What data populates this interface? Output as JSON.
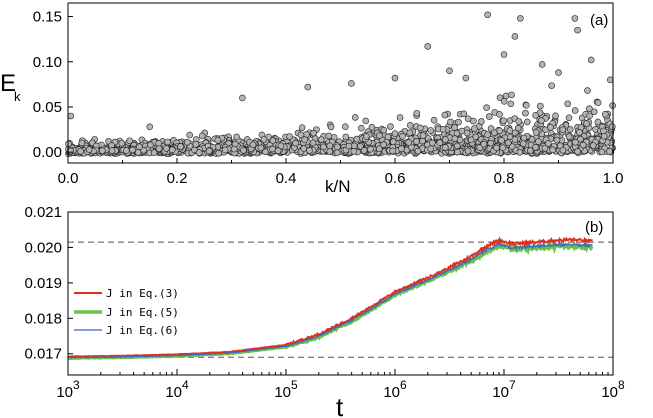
{
  "chart_data": [
    {
      "type": "scatter",
      "panel_label": "(a)",
      "xlabel": "k/N",
      "ylabel_main": "E",
      "ylabel_sub": "k",
      "xlim": [
        0.0,
        1.0
      ],
      "ylim": [
        -0.012,
        0.165
      ],
      "xticks": [
        "0.0",
        "0.2",
        "0.4",
        "0.6",
        "0.8",
        "1.0"
      ],
      "xtick_values": [
        0.0,
        0.2,
        0.4,
        0.6,
        0.8,
        1.0
      ],
      "yticks": [
        "0.00",
        "0.05",
        "0.10",
        "0.15"
      ],
      "ytick_values": [
        0.0,
        0.05,
        0.1,
        0.15
      ],
      "marker_color": "#b4b4b4",
      "marker_edge": "#222222",
      "num_points": 1900,
      "notable_points": [
        {
          "x": 0.005,
          "y": 0.04
        },
        {
          "x": 0.15,
          "y": 0.028
        },
        {
          "x": 0.32,
          "y": 0.06
        },
        {
          "x": 0.44,
          "y": 0.072
        },
        {
          "x": 0.52,
          "y": 0.076
        },
        {
          "x": 0.6,
          "y": 0.082
        },
        {
          "x": 0.66,
          "y": 0.117
        },
        {
          "x": 0.7,
          "y": 0.09
        },
        {
          "x": 0.73,
          "y": 0.082
        },
        {
          "x": 0.77,
          "y": 0.152
        },
        {
          "x": 0.8,
          "y": 0.108
        },
        {
          "x": 0.82,
          "y": 0.128
        },
        {
          "x": 0.83,
          "y": 0.148
        },
        {
          "x": 0.87,
          "y": 0.097
        },
        {
          "x": 0.9,
          "y": 0.088
        },
        {
          "x": 0.93,
          "y": 0.148
        },
        {
          "x": 0.935,
          "y": 0.135
        },
        {
          "x": 0.96,
          "y": 0.102
        },
        {
          "x": 0.995,
          "y": 0.08
        }
      ]
    },
    {
      "type": "line",
      "panel_label": "(b)",
      "xlabel": "t",
      "x_scale": "log",
      "xlim": [
        1000,
        100000000
      ],
      "ylim": [
        0.0164,
        0.021
      ],
      "xtick_exponents": [
        "3",
        "4",
        "5",
        "6",
        "7",
        "8"
      ],
      "xtick_base": "10",
      "yticks": [
        "0.017",
        "0.018",
        "0.019",
        "0.020",
        "0.021"
      ],
      "ytick_values": [
        0.017,
        0.018,
        0.019,
        0.02,
        0.021
      ],
      "hlines": [
        0.0169,
        0.02015
      ],
      "series": [
        {
          "name": "J in Eq.(3)",
          "color": "#e03020",
          "width": 2.0,
          "x": [
            1000,
            3000,
            10000,
            30000,
            100000,
            200000,
            400000,
            700000,
            1000000,
            2000000,
            3000000,
            5000000,
            7000000,
            9000000,
            12000000,
            20000000,
            30000000,
            40000000,
            50000000,
            60000000,
            65000000
          ],
          "y": [
            0.01692,
            0.01694,
            0.01698,
            0.01705,
            0.01725,
            0.01755,
            0.018,
            0.01845,
            0.01875,
            0.01915,
            0.0194,
            0.01975,
            0.02005,
            0.0202,
            0.0201,
            0.02015,
            0.0202,
            0.02022,
            0.0202,
            0.02018,
            0.02016
          ]
        },
        {
          "name": "J in Eq.(5)",
          "color": "#6cc04a",
          "width": 3.6,
          "x": [
            1000,
            3000,
            10000,
            30000,
            100000,
            200000,
            400000,
            700000,
            1000000,
            2000000,
            3000000,
            5000000,
            7000000,
            9000000,
            12000000,
            20000000,
            30000000,
            40000000,
            50000000,
            60000000,
            65000000
          ],
          "y": [
            0.01688,
            0.0169,
            0.01694,
            0.01701,
            0.0172,
            0.01748,
            0.01792,
            0.01836,
            0.01866,
            0.01906,
            0.0193,
            0.01963,
            0.0199,
            0.02005,
            0.01995,
            0.02,
            0.02003,
            0.02004,
            0.02002,
            0.02001,
            0.02
          ]
        },
        {
          "name": "J in Eq.(6)",
          "color": "#3a66c8",
          "width": 1.2,
          "x": [
            1000,
            3000,
            10000,
            30000,
            100000,
            200000,
            400000,
            700000,
            1000000,
            2000000,
            3000000,
            5000000,
            7000000,
            9000000,
            12000000,
            20000000,
            30000000,
            40000000,
            50000000,
            60000000,
            65000000
          ],
          "y": [
            0.01689,
            0.01691,
            0.01695,
            0.01702,
            0.01721,
            0.0175,
            0.01794,
            0.01838,
            0.01868,
            0.01908,
            0.01933,
            0.01966,
            0.01994,
            0.02008,
            0.01998,
            0.02004,
            0.02008,
            0.02009,
            0.02007,
            0.02006,
            0.02005
          ]
        }
      ]
    }
  ]
}
